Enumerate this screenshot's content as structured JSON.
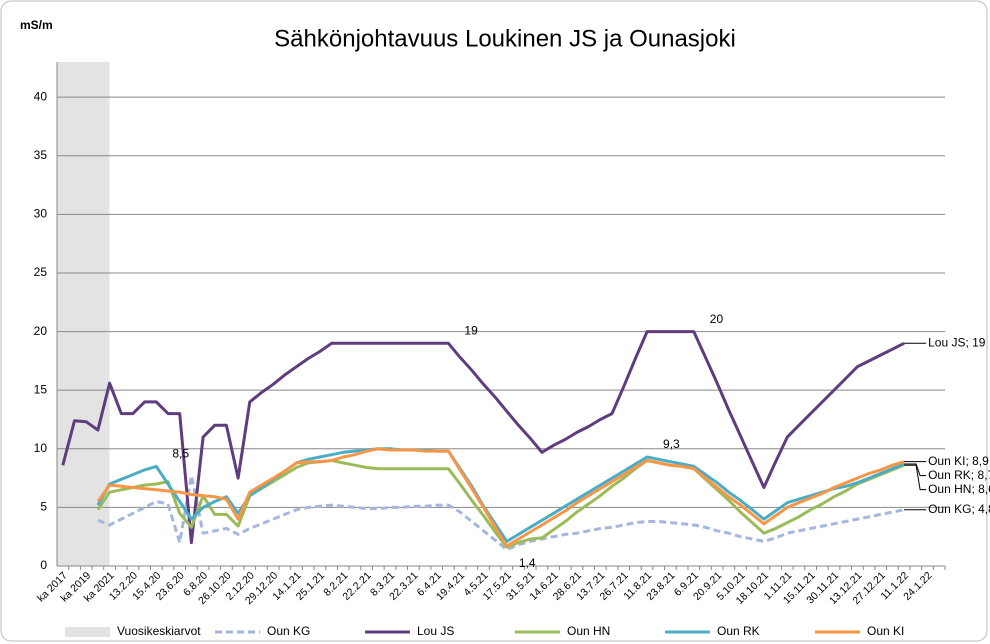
{
  "chart_data": {
    "type": "line",
    "title": "Sähkönjohtavuus Loukinen JS ja Ounasjoki",
    "y_label": "mS/m",
    "categories": [
      "ka 2017",
      null,
      "ka 2019",
      null,
      "ka 2021",
      null,
      "13.2.20",
      null,
      "15.4.20",
      null,
      "23.6.20",
      null,
      "6.8.20",
      null,
      "26.10.20",
      null,
      "2.12.20",
      null,
      "29.12.20",
      null,
      "14.1.21",
      null,
      "25.1.21",
      null,
      "8.2.21",
      null,
      "22.2.21",
      null,
      "8.3.21",
      null,
      "22.3.21",
      null,
      "6.4.21",
      null,
      "19.4.21",
      null,
      "4.5.21",
      null,
      "17.5.21",
      null,
      "31.5.21",
      null,
      "14.6.21",
      null,
      "28.6.21",
      null,
      "13.7.21",
      null,
      "26.7.21",
      null,
      "11.8.21",
      null,
      "23.8.21",
      null,
      "6.9.21",
      null,
      "20.9.21",
      null,
      "5.10.21",
      null,
      "18.10.21",
      null,
      "1.11.21",
      null,
      "15.11.21",
      null,
      "30.11.21",
      null,
      "13.12.21",
      null,
      "27.12.21",
      null,
      "11.1.22",
      null,
      "24.1.22",
      null
    ],
    "shaded": {
      "name": "Vuosikeskiarvot",
      "color": "#e3e3e3",
      "from": "ka 2017",
      "to": "ka 2021"
    },
    "series": [
      {
        "name": "Oun KG",
        "color": "#a6b7dd",
        "dashed": true,
        "values": [
          null,
          null,
          null,
          3.9,
          3.5,
          4.0,
          4.5,
          5.0,
          5.5,
          5.3,
          2,
          7.7,
          2.8,
          3.0,
          3.2,
          2.7,
          3.2,
          3.6,
          4.0,
          4.4,
          4.8,
          5.0,
          5.1,
          5.2,
          5.1,
          5.0,
          4.9,
          4.9,
          5.0,
          5.0,
          5.1,
          5.1,
          5.2,
          5.2,
          4.6,
          3.8,
          3.0,
          2.2,
          1.4,
          1.8,
          2.1,
          2.3,
          2.5,
          2.7,
          2.8,
          3.0,
          3.2,
          3.3,
          3.5,
          3.7,
          3.8,
          3.8,
          3.7,
          3.6,
          3.5,
          3.3,
          3.0,
          2.8,
          2.5,
          2.3,
          2.1,
          2.4,
          2.8,
          3.0,
          3.2,
          3.4,
          3.6,
          3.8,
          4.0,
          4.2,
          4.4,
          4.6,
          4.8,
          null,
          null,
          null
        ],
        "value_labels": [
          null,
          null,
          null,
          null,
          null,
          null,
          null,
          null,
          null,
          null,
          null,
          null,
          null,
          null,
          null,
          null,
          null,
          null,
          null,
          null,
          null,
          null,
          null,
          null,
          null,
          null,
          null,
          null,
          null,
          null,
          null,
          null,
          null,
          null,
          null,
          null,
          null,
          null,
          "1,4",
          null,
          null,
          null,
          null,
          null,
          null,
          null,
          null,
          null,
          null,
          null,
          null,
          null,
          null,
          null,
          null,
          null,
          null,
          null,
          null,
          null,
          null,
          null,
          null,
          null,
          null,
          null,
          null,
          null,
          null,
          null,
          null,
          null,
          "Oun KG; 4,8",
          null,
          null,
          null
        ]
      },
      {
        "name": "Lou JS",
        "color": "#5e3c7e",
        "values": [
          8.6,
          12.4,
          12.3,
          11.6,
          15.6,
          13,
          13,
          14,
          14,
          13,
          13,
          2,
          11,
          12,
          12,
          7.5,
          14,
          14.8,
          15.5,
          16.3,
          17,
          17.7,
          18.3,
          19,
          19,
          19,
          19,
          19,
          19,
          19,
          19,
          19,
          19,
          19,
          17.8,
          16.7,
          15.5,
          14.4,
          13.2,
          12.0,
          10.9,
          9.7,
          10.3,
          10.8,
          11.4,
          11.9,
          12.5,
          13,
          15.3,
          17.7,
          20,
          20,
          20,
          20,
          20,
          17.8,
          15.6,
          13.3,
          11.1,
          8.9,
          6.7,
          8.9,
          11,
          12,
          13,
          14,
          15,
          16,
          17,
          17.5,
          18,
          18.5,
          19,
          null,
          null,
          null
        ],
        "value_labels": [
          null,
          null,
          null,
          null,
          null,
          null,
          null,
          null,
          null,
          null,
          null,
          null,
          null,
          null,
          null,
          null,
          null,
          null,
          null,
          null,
          null,
          null,
          null,
          null,
          null,
          null,
          null,
          null,
          null,
          null,
          null,
          null,
          null,
          "19",
          null,
          null,
          null,
          null,
          null,
          null,
          null,
          null,
          null,
          null,
          null,
          null,
          null,
          null,
          null,
          null,
          null,
          null,
          null,
          null,
          "20",
          null,
          null,
          null,
          null,
          null,
          null,
          null,
          null,
          null,
          null,
          null,
          null,
          null,
          null,
          null,
          null,
          null,
          "Lou JS; 19",
          null,
          null,
          null
        ]
      },
      {
        "name": "Oun HN",
        "color": "#9bbb59",
        "values": [
          null,
          null,
          null,
          4.8,
          6.3,
          6.5,
          6.7,
          6.9,
          7.0,
          7.2,
          4.5,
          3.3,
          6.0,
          4.4,
          4.4,
          3.4,
          6.0,
          6.6,
          7.2,
          7.8,
          8.4,
          8.8,
          8.9,
          9.0,
          8.8,
          8.6,
          8.4,
          8.3,
          8.3,
          8.3,
          8.3,
          8.3,
          8.3,
          8.3,
          7.0,
          5.6,
          4.3,
          2.9,
          1.6,
          2.0,
          2.3,
          2.4,
          3.1,
          3.8,
          4.6,
          5.3,
          6.0,
          6.8,
          7.5,
          8.3,
          9.0,
          8.8,
          8.6,
          8.5,
          8.3,
          7.4,
          6.5,
          5.6,
          4.6,
          3.7,
          2.8,
          3.2,
          3.7,
          4.2,
          4.8,
          5.3,
          5.9,
          6.4,
          7.0,
          7.4,
          7.8,
          8.2,
          8.6,
          null,
          null,
          null
        ],
        "value_labels": [
          null,
          null,
          null,
          null,
          null,
          null,
          null,
          null,
          null,
          null,
          null,
          null,
          null,
          null,
          null,
          null,
          null,
          null,
          null,
          null,
          null,
          null,
          null,
          null,
          null,
          null,
          null,
          null,
          null,
          null,
          null,
          null,
          null,
          null,
          null,
          null,
          null,
          null,
          null,
          null,
          null,
          null,
          null,
          null,
          null,
          null,
          null,
          null,
          null,
          null,
          null,
          null,
          null,
          null,
          null,
          null,
          null,
          null,
          null,
          null,
          null,
          null,
          null,
          null,
          null,
          null,
          null,
          null,
          null,
          null,
          null,
          null,
          "Oun HN; 8,6",
          null,
          null,
          null
        ]
      },
      {
        "name": "Oun RK",
        "color": "#4bacc6",
        "values": [
          null,
          null,
          null,
          5.2,
          7.0,
          7.4,
          7.8,
          8.2,
          8.5,
          7.0,
          5.5,
          4.0,
          5.0,
          5.5,
          5.9,
          4.5,
          6.0,
          6.7,
          7.4,
          8.1,
          8.8,
          9.1,
          9.3,
          9.5,
          9.7,
          9.8,
          9.9,
          10.0,
          10.0,
          9.9,
          9.9,
          9.9,
          9.8,
          9.8,
          8.3,
          6.8,
          5.1,
          3.6,
          2.1,
          2.7,
          3.3,
          3.9,
          4.5,
          5.1,
          5.7,
          6.3,
          6.9,
          7.5,
          8.1,
          8.7,
          9.3,
          9.1,
          8.9,
          8.7,
          8.5,
          7.8,
          7.1,
          6.3,
          5.6,
          4.8,
          4.0,
          4.7,
          5.4,
          5.7,
          6.0,
          6.3,
          6.6,
          6.8,
          7.1,
          7.5,
          7.9,
          8.3,
          8.7,
          null,
          null,
          null
        ],
        "value_labels": [
          null,
          null,
          null,
          null,
          null,
          null,
          null,
          null,
          "8,5",
          null,
          null,
          null,
          null,
          null,
          null,
          null,
          null,
          null,
          null,
          null,
          null,
          null,
          null,
          null,
          null,
          null,
          null,
          null,
          null,
          null,
          null,
          null,
          null,
          null,
          null,
          null,
          null,
          null,
          null,
          null,
          null,
          null,
          null,
          null,
          null,
          null,
          null,
          null,
          null,
          null,
          "9,3",
          null,
          null,
          null,
          null,
          null,
          null,
          null,
          null,
          null,
          null,
          null,
          null,
          null,
          null,
          null,
          null,
          null,
          null,
          null,
          null,
          null,
          "Oun RK; 8,7",
          null,
          null,
          null
        ]
      },
      {
        "name": "Oun KI",
        "color": "#f79646",
        "values": [
          null,
          null,
          null,
          5.5,
          6.9,
          6.8,
          6.7,
          6.6,
          6.5,
          6.4,
          6.3,
          6.1,
          6.0,
          5.9,
          5.7,
          4.0,
          6.3,
          6.9,
          7.5,
          8.1,
          8.8,
          8.9,
          8.9,
          9.0,
          9.3,
          9.5,
          9.8,
          10.0,
          9.9,
          9.9,
          9.9,
          9.8,
          9.8,
          9.8,
          8.2,
          6.6,
          5.0,
          3.3,
          1.7,
          2.3,
          2.9,
          3.5,
          4.1,
          4.7,
          5.4,
          6.0,
          6.6,
          7.2,
          7.8,
          8.4,
          9.0,
          8.8,
          8.6,
          8.5,
          8.3,
          7.5,
          6.7,
          5.9,
          5.2,
          4.4,
          3.6,
          4.3,
          5.0,
          5.4,
          5.8,
          6.2,
          6.7,
          7.1,
          7.5,
          7.9,
          8.2,
          8.6,
          8.9,
          null,
          null,
          null
        ],
        "value_labels": [
          null,
          null,
          null,
          null,
          null,
          null,
          null,
          null,
          null,
          null,
          null,
          null,
          null,
          null,
          null,
          null,
          null,
          null,
          null,
          null,
          null,
          null,
          null,
          null,
          null,
          null,
          null,
          null,
          null,
          null,
          null,
          null,
          null,
          null,
          null,
          null,
          null,
          null,
          null,
          null,
          null,
          null,
          null,
          null,
          null,
          null,
          null,
          null,
          null,
          null,
          null,
          null,
          null,
          null,
          null,
          null,
          null,
          null,
          null,
          null,
          null,
          null,
          null,
          null,
          null,
          null,
          null,
          null,
          null,
          null,
          null,
          null,
          "Oun KI; 8,9",
          null,
          null,
          null
        ]
      }
    ],
    "ylim": [
      0,
      43
    ],
    "yticks": [
      0,
      5,
      10,
      15,
      20,
      25,
      30,
      35,
      40
    ],
    "grid": true
  }
}
